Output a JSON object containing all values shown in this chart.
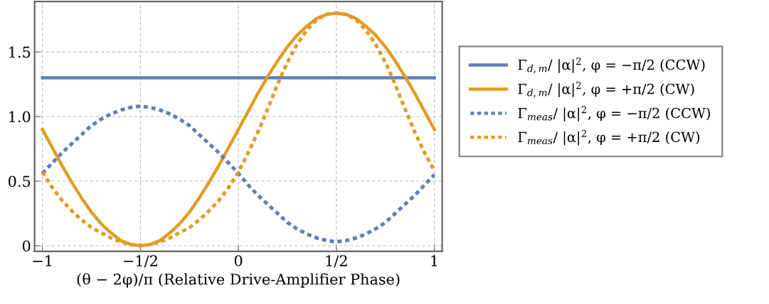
{
  "chart_data": {
    "type": "line",
    "xlabel": "(θ − 2φ)/π (Relative Drive-Amplifier Phase)",
    "x": [
      -1,
      -0.95,
      -0.9,
      -0.85,
      -0.8,
      -0.75,
      -0.7,
      -0.65,
      -0.6,
      -0.55,
      -0.5,
      -0.45,
      -0.4,
      -0.35,
      -0.3,
      -0.25,
      -0.2,
      -0.15,
      -0.1,
      -0.05,
      0,
      0.05,
      0.1,
      0.15,
      0.2,
      0.25,
      0.3,
      0.35,
      0.4,
      0.45,
      0.5,
      0.55,
      0.6,
      0.65,
      0.7,
      0.75,
      0.8,
      0.85,
      0.9,
      0.95,
      1
    ],
    "series": [
      {
        "name": "Γ$_{d,m}$/ |α|$^{2}$, φ = −π/2 (CCW)",
        "color": "#5e81b5",
        "line_style": "solid",
        "values": [
          1.3,
          1.3,
          1.3,
          1.3,
          1.3,
          1.3,
          1.3,
          1.3,
          1.3,
          1.3,
          1.3,
          1.3,
          1.3,
          1.3,
          1.3,
          1.3,
          1.3,
          1.3,
          1.3,
          1.3,
          1.3,
          1.3,
          1.3,
          1.3,
          1.3,
          1.3,
          1.3,
          1.3,
          1.3,
          1.3,
          1.3,
          1.3,
          1.3,
          1.3,
          1.3,
          1.3,
          1.3,
          1.3,
          1.3,
          1.3,
          1.3
        ]
      },
      {
        "name": "Γ$_{d,m}$/ |α|$^{2}$, φ = +π/2 (CW)",
        "color": "#e19c24",
        "line_style": "solid",
        "values": [
          0.9,
          0.76,
          0.62,
          0.49,
          0.37,
          0.26,
          0.17,
          0.1,
          0.04,
          0.01,
          0,
          0.01,
          0.04,
          0.1,
          0.17,
          0.26,
          0.37,
          0.49,
          0.62,
          0.76,
          0.9,
          1.04,
          1.18,
          1.31,
          1.43,
          1.54,
          1.63,
          1.7,
          1.76,
          1.79,
          1.8,
          1.79,
          1.76,
          1.7,
          1.63,
          1.54,
          1.43,
          1.31,
          1.18,
          1.04,
          0.9
        ]
      },
      {
        "name": "Γ$_{meas}$/ |α|$^{2}$, φ = −π/2 (CCW)",
        "color": "#5e81b5",
        "line_style": "dotted",
        "values": [
          0.56,
          0.64,
          0.72,
          0.79,
          0.86,
          0.93,
          0.98,
          1.02,
          1.05,
          1.07,
          1.08,
          1.07,
          1.05,
          1.02,
          0.98,
          0.93,
          0.86,
          0.79,
          0.72,
          0.64,
          0.56,
          0.47,
          0.39,
          0.32,
          0.25,
          0.18,
          0.13,
          0.09,
          0.06,
          0.04,
          0.03,
          0.04,
          0.06,
          0.09,
          0.13,
          0.18,
          0.25,
          0.32,
          0.39,
          0.47,
          0.55
        ]
      },
      {
        "name": "Γ$_{meas}$/ |α|$^{2}$, φ = +π/2 (CW)",
        "color": "#e19c24",
        "line_style": "dotted",
        "values": [
          0.57,
          0.45,
          0.35,
          0.27,
          0.2,
          0.14,
          0.1,
          0.06,
          0.03,
          0.01,
          0,
          0.01,
          0.03,
          0.06,
          0.1,
          0.14,
          0.2,
          0.27,
          0.35,
          0.45,
          0.57,
          0.72,
          0.88,
          1.06,
          1.25,
          1.42,
          1.56,
          1.67,
          1.75,
          1.79,
          1.8,
          1.79,
          1.75,
          1.67,
          1.56,
          1.42,
          1.25,
          1.06,
          0.88,
          0.72,
          0.58
        ]
      }
    ],
    "xlim": [
      -1.04,
      1.04
    ],
    "xticks": [
      {
        "value": -1,
        "label": "−1"
      },
      {
        "value": -0.5,
        "label": "−1/2"
      },
      0,
      {
        "value": 0.5,
        "label": "1/2"
      },
      1
    ],
    "ylim": [
      -0.044,
      1.89
    ],
    "yticks": [
      0,
      0.5,
      {
        "value": 1.0,
        "label": "1.0"
      },
      1.5
    ],
    "grid": true,
    "legend": "right"
  }
}
